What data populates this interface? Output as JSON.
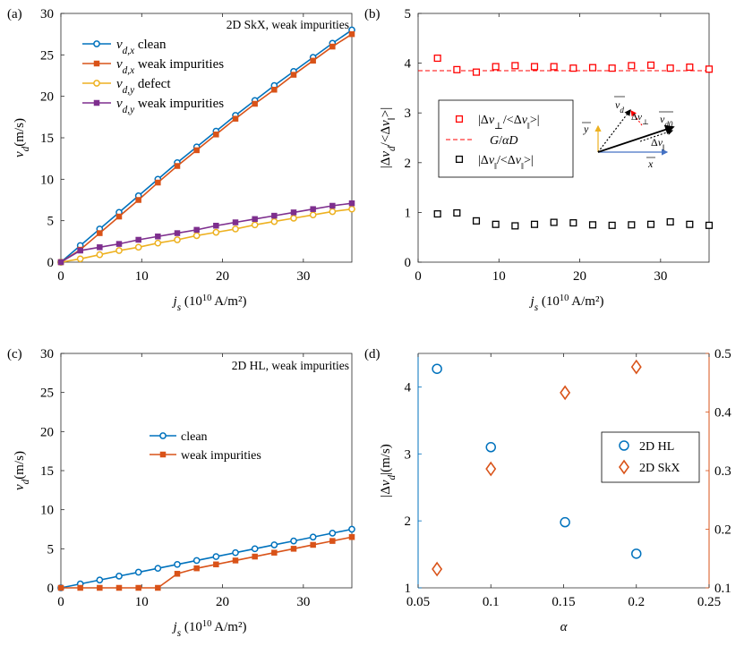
{
  "chart_data": [
    {
      "panel": "a",
      "panel_label": "(a)",
      "type": "line",
      "title": "2D SkX, weak impurities",
      "xlabel_main": "j",
      "xlabel_sub": "s",
      "xlabel_unit": " (10",
      "xlabel_exp": "10",
      "xlabel_tail": " A/m²)",
      "ylabel_main": "v",
      "ylabel_sub": "d",
      "ylabel_unit": "(m/s)",
      "xlim": [
        0,
        36
      ],
      "ylim": [
        0,
        30
      ],
      "xticks": [
        0,
        10,
        20,
        30
      ],
      "xtick_labels": [
        "0",
        "10",
        "20",
        "30"
      ],
      "yticks": [
        0,
        5,
        10,
        15,
        20,
        25,
        30
      ],
      "ytick_labels": [
        "0",
        "5",
        "10",
        "15",
        "20",
        "25",
        "30"
      ],
      "legend_position": "top-left",
      "series": [
        {
          "sym": "v",
          "sub": "d,x",
          "text": "clean",
          "color": "#0072bd",
          "marker": "circle",
          "x": [
            0,
            2.4,
            4.8,
            7.2,
            9.6,
            12,
            14.4,
            16.8,
            19.2,
            21.6,
            24,
            26.4,
            28.8,
            31.2,
            33.6,
            36
          ],
          "y": [
            0,
            2,
            4,
            6,
            8,
            10,
            12,
            13.9,
            15.8,
            17.7,
            19.5,
            21.3,
            23,
            24.7,
            26.4,
            28
          ]
        },
        {
          "sym": "v",
          "sub": "d,x",
          "text": "weak impurities",
          "color": "#d95319",
          "marker": "square",
          "x": [
            0,
            2.4,
            4.8,
            7.2,
            9.6,
            12,
            14.4,
            16.8,
            19.2,
            21.6,
            24,
            26.4,
            28.8,
            31.2,
            33.6,
            36
          ],
          "y": [
            0,
            1.5,
            3.5,
            5.5,
            7.5,
            9.6,
            11.6,
            13.5,
            15.4,
            17.3,
            19.1,
            20.8,
            22.6,
            24.3,
            26,
            27.5
          ]
        },
        {
          "sym": "v",
          "sub": "d,y",
          "text": "defect",
          "color": "#edb120",
          "marker": "circle",
          "x": [
            0,
            2.4,
            4.8,
            7.2,
            9.6,
            12,
            14.4,
            16.8,
            19.2,
            21.6,
            24,
            26.4,
            28.8,
            31.2,
            33.6,
            36
          ],
          "y": [
            0,
            0.4,
            0.9,
            1.4,
            1.8,
            2.3,
            2.7,
            3.2,
            3.6,
            4,
            4.5,
            4.9,
            5.3,
            5.7,
            6.1,
            6.4
          ]
        },
        {
          "sym": "v",
          "sub": "d,y",
          "text": "weak impurities",
          "color": "#7e2f8e",
          "marker": "square",
          "x": [
            0,
            2.4,
            4.8,
            7.2,
            9.6,
            12,
            14.4,
            16.8,
            19.2,
            21.6,
            24,
            26.4,
            28.8,
            31.2,
            33.6,
            36
          ],
          "y": [
            0,
            1.4,
            1.8,
            2.2,
            2.7,
            3.1,
            3.5,
            3.9,
            4.4,
            4.8,
            5.2,
            5.6,
            6,
            6.4,
            6.8,
            7.1
          ]
        }
      ]
    },
    {
      "panel": "b",
      "panel_label": "(b)",
      "type": "scatter",
      "title": "",
      "xlabel_main": "j",
      "xlabel_sub": "s",
      "xlabel_unit": " (10",
      "xlabel_exp": "10",
      "xlabel_tail": " A/m²)",
      "ylabel": "|Δv_d/<Δv_‖>|",
      "xlim": [
        0,
        36
      ],
      "ylim": [
        0,
        5
      ],
      "xticks": [
        0,
        10,
        20,
        30
      ],
      "xtick_labels": [
        "0",
        "10",
        "20",
        "30"
      ],
      "yticks": [
        0,
        1,
        2,
        3,
        4,
        5
      ],
      "ytick_labels": [
        "0",
        "1",
        "2",
        "3",
        "4",
        "5"
      ],
      "legend_position": "middle-left",
      "legend": [
        "|Δv⊥/<Δv‖>|",
        "G/αD",
        "|Δv‖/<Δv‖>|"
      ],
      "reference_line": {
        "name": "G/αD",
        "y": 3.85,
        "color": "#ff0000",
        "style": "dashed"
      },
      "series": [
        {
          "name": "|Δv⊥/<Δv‖>|",
          "color": "#ff0000",
          "marker": "square",
          "x": [
            2.4,
            4.8,
            7.2,
            9.6,
            12,
            14.4,
            16.8,
            19.2,
            21.6,
            24,
            26.4,
            28.8,
            31.2,
            33.6,
            36
          ],
          "y": [
            4.1,
            3.87,
            3.82,
            3.93,
            3.95,
            3.93,
            3.93,
            3.9,
            3.91,
            3.9,
            3.95,
            3.96,
            3.9,
            3.92,
            3.88
          ]
        },
        {
          "name": "|Δv‖/<Δv‖>|",
          "color": "#000000",
          "marker": "square",
          "x": [
            2.4,
            4.8,
            7.2,
            9.6,
            12,
            14.4,
            16.8,
            19.2,
            21.6,
            24,
            26.4,
            28.8,
            31.2,
            33.6,
            36
          ],
          "y": [
            0.97,
            0.99,
            0.83,
            0.76,
            0.73,
            0.76,
            0.8,
            0.79,
            0.75,
            0.74,
            0.75,
            0.76,
            0.81,
            0.76,
            0.74
          ]
        }
      ],
      "inset": {
        "x_label": "x",
        "y_label": "y",
        "vd_label": "v",
        "vd_sub": "d",
        "vd0_label": "v",
        "vd0_sub": "d0",
        "dvperp_label": "Δv⊥",
        "dvpar_label": "Δv‖"
      }
    },
    {
      "panel": "c",
      "panel_label": "(c)",
      "type": "line",
      "title": "2D HL, weak impurities",
      "xlabel_main": "j",
      "xlabel_sub": "s",
      "xlabel_unit": " (10",
      "xlabel_exp": "10",
      "xlabel_tail": " A/m²)",
      "ylabel_main": "v",
      "ylabel_sub": "d",
      "ylabel_unit": "(m/s)",
      "xlim": [
        0,
        36
      ],
      "ylim": [
        0,
        30
      ],
      "xticks": [
        0,
        10,
        20,
        30
      ],
      "xtick_labels": [
        "0",
        "10",
        "20",
        "30"
      ],
      "yticks": [
        0,
        5,
        10,
        15,
        20,
        25,
        30
      ],
      "ytick_labels": [
        "0",
        "5",
        "10",
        "15",
        "20",
        "25",
        "30"
      ],
      "legend_position": "center",
      "series": [
        {
          "name": "clean",
          "color": "#0072bd",
          "marker": "circle",
          "x": [
            0,
            2.4,
            4.8,
            7.2,
            9.6,
            12,
            14.4,
            16.8,
            19.2,
            21.6,
            24,
            26.4,
            28.8,
            31.2,
            33.6,
            36
          ],
          "y": [
            0,
            0.5,
            1,
            1.5,
            2,
            2.5,
            3,
            3.5,
            4,
            4.5,
            5,
            5.5,
            6,
            6.5,
            7,
            7.5
          ]
        },
        {
          "name": "weak impurities",
          "color": "#d95319",
          "marker": "square",
          "x": [
            0,
            2.4,
            4.8,
            7.2,
            9.6,
            12,
            14.4,
            16.8,
            19.2,
            21.6,
            24,
            26.4,
            28.8,
            31.2,
            33.6,
            36
          ],
          "y": [
            0,
            0,
            0,
            0,
            0,
            0,
            1.8,
            2.5,
            3,
            3.5,
            4,
            4.5,
            5,
            5.5,
            6,
            6.5
          ]
        }
      ]
    },
    {
      "panel": "d",
      "panel_label": "(d)",
      "type": "scatter",
      "title": "",
      "xlabel": "α",
      "ylabel_left": "|Δv_d|(m/s)",
      "ylabel_left_prefix": "|Δ",
      "ylabel_left_v": "v",
      "ylabel_left_sub": "d",
      "ylabel_left_suffix": "|(m/s)",
      "xlim": [
        0.05,
        0.25
      ],
      "ylim_left": [
        1,
        4.5
      ],
      "ylim_right": [
        0.1,
        0.5
      ],
      "xticks": [
        0.05,
        0.1,
        0.15,
        0.2,
        0.25
      ],
      "xtick_labels": [
        "0.05",
        "0.1",
        "0.15",
        "0.2",
        "0.25"
      ],
      "yticks_left": [
        1,
        2,
        3,
        4
      ],
      "ytick_labels_left": [
        "1",
        "2",
        "3",
        "4"
      ],
      "yticks_right": [
        0.1,
        0.2,
        0.3,
        0.4,
        0.5
      ],
      "ytick_labels_right": [
        "0.1",
        "0.2",
        "0.3",
        "0.4",
        "0.5"
      ],
      "left_axis_color": "#0072bd",
      "right_axis_color": "#d95319",
      "legend_position": "right",
      "series": [
        {
          "name": "2D HL",
          "axis": "left",
          "color": "#0072bd",
          "marker": "circle",
          "x": [
            0.063,
            0.1,
            0.151,
            0.2
          ],
          "y": [
            4.27,
            3.1,
            1.98,
            1.51
          ]
        },
        {
          "name": "2D SkX",
          "axis": "right",
          "color": "#d95319",
          "marker": "diamond",
          "x": [
            0.063,
            0.1,
            0.151,
            0.2
          ],
          "y": [
            0.132,
            0.303,
            0.433,
            0.477
          ]
        }
      ]
    }
  ]
}
